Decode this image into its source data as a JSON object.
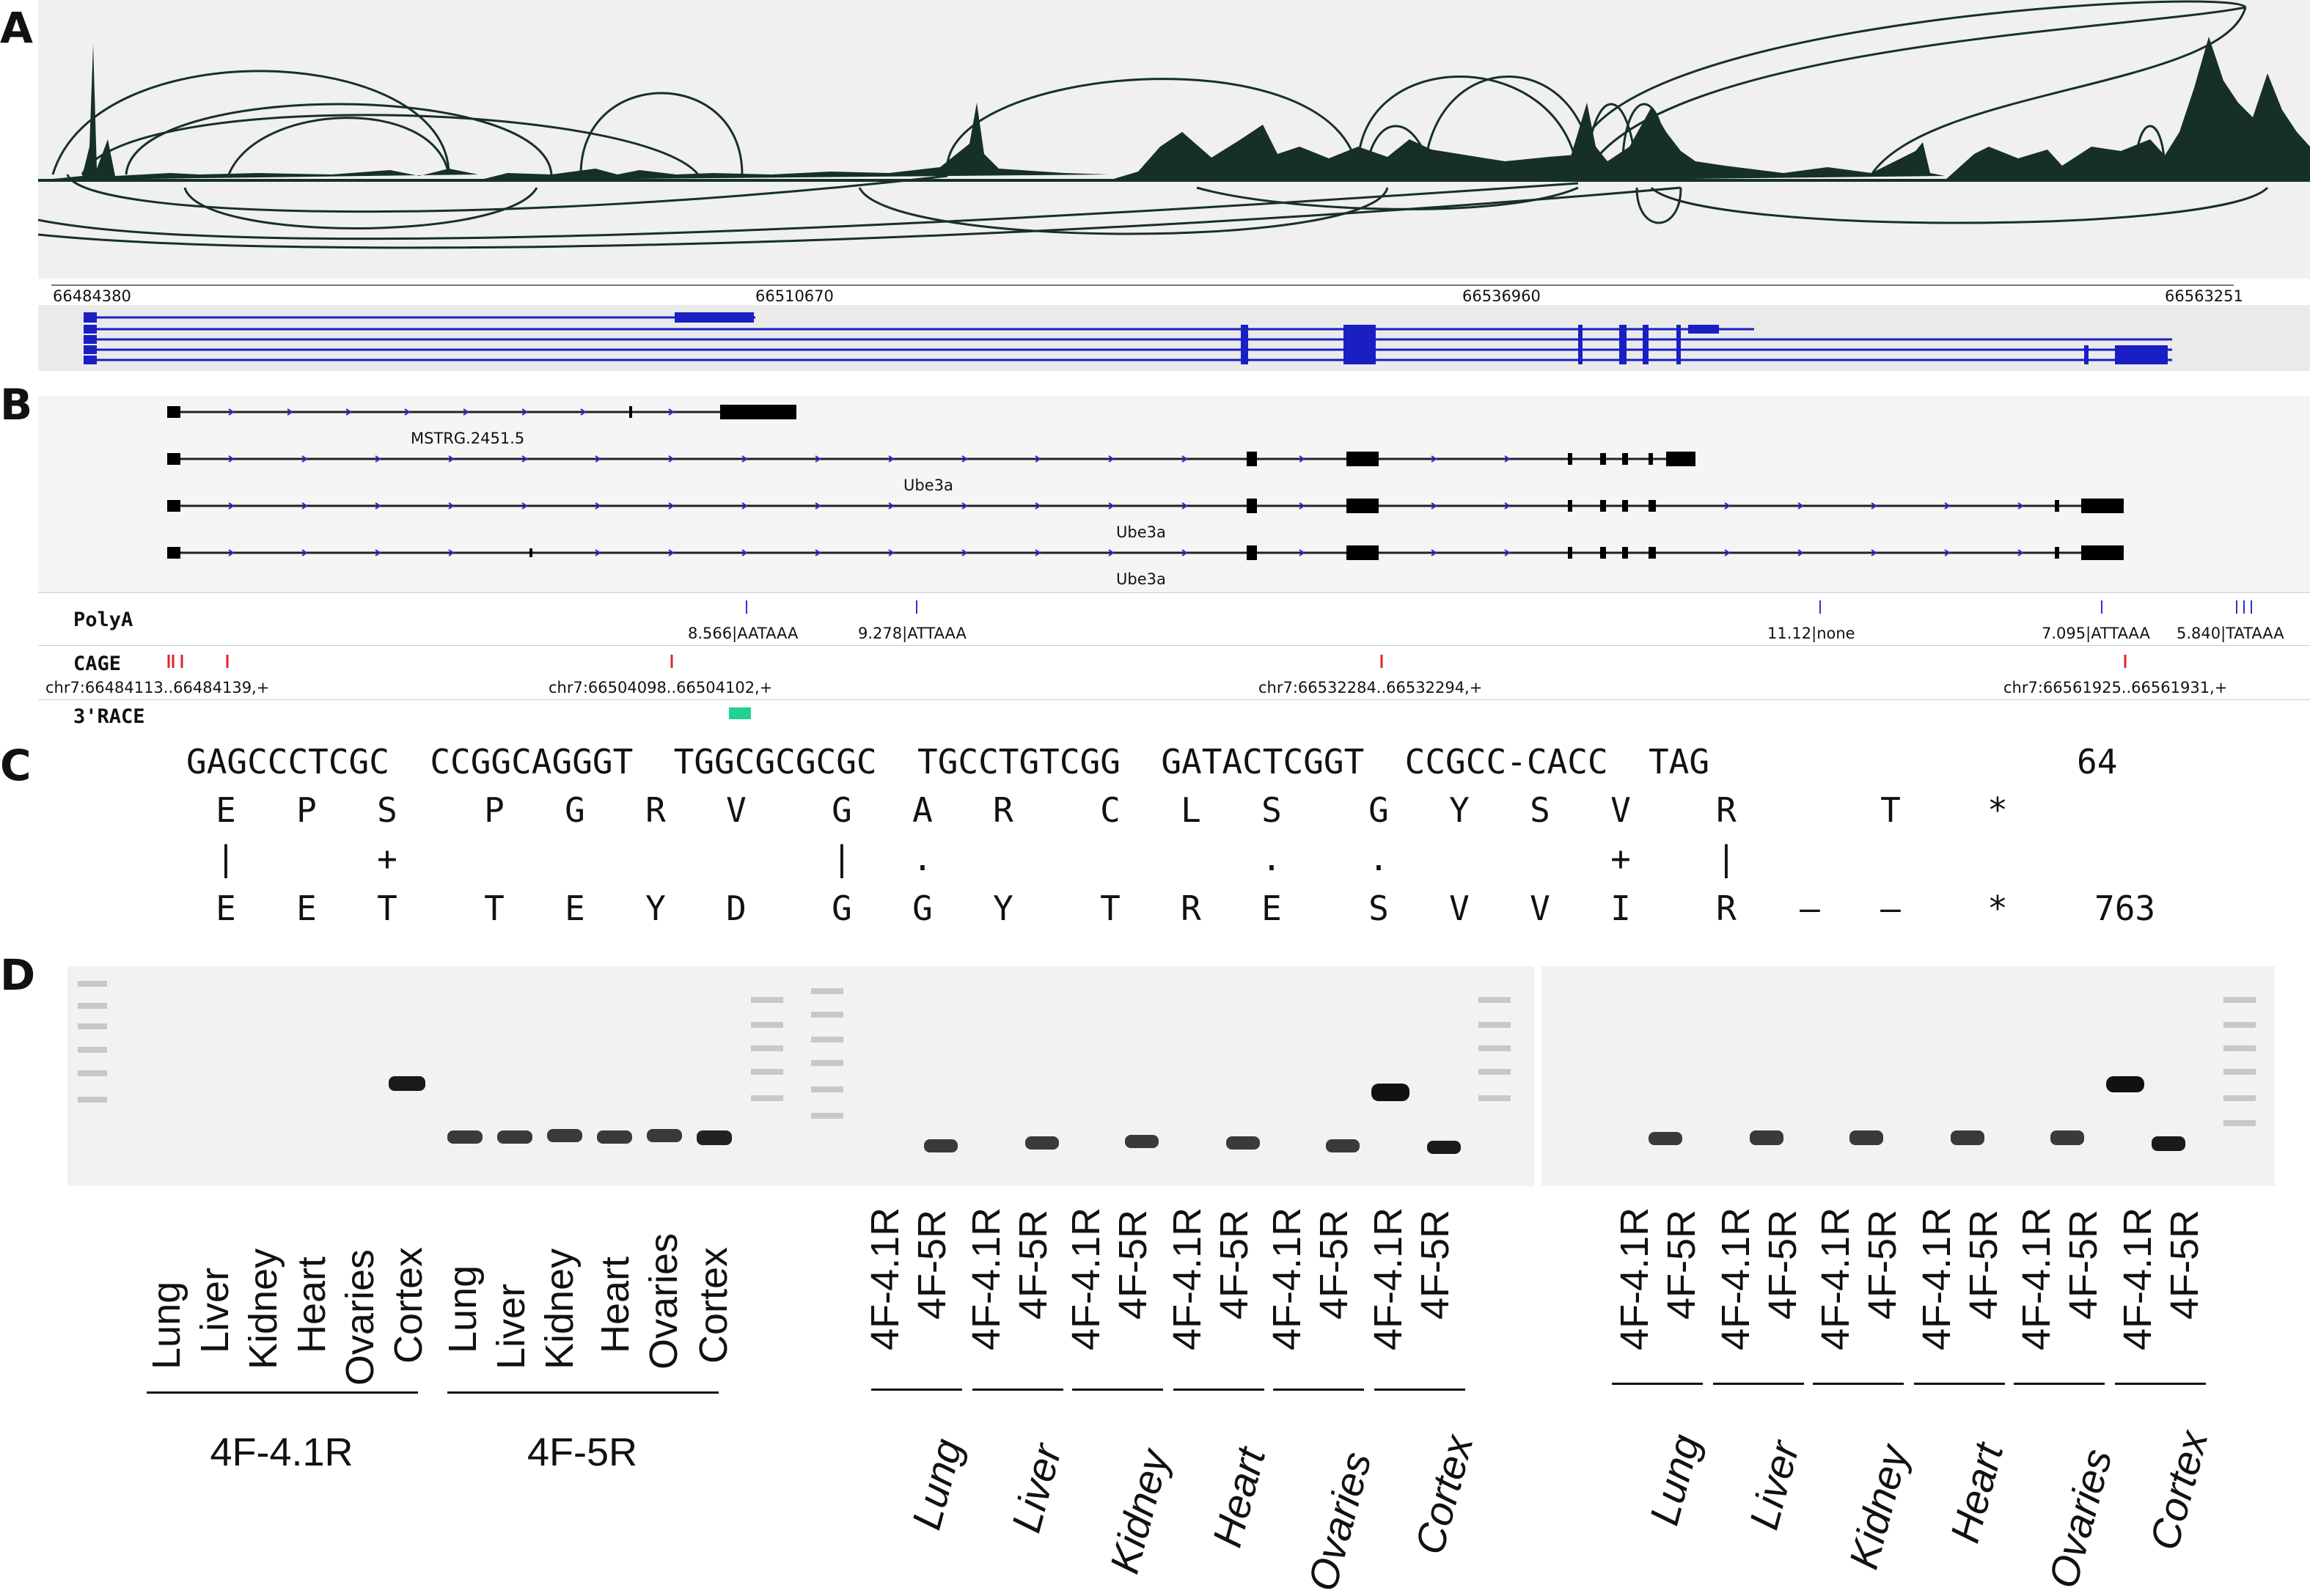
{
  "panels": {
    "a": "A",
    "b": "B",
    "c": "C",
    "d": "D"
  },
  "panelA": {
    "coords": [
      "66484380",
      "66510670",
      "66536960",
      "66563251"
    ]
  },
  "panelB": {
    "transcripts": [
      "MSTRG.2451.5",
      "Ube3a",
      "Ube3a",
      "Ube3a"
    ],
    "tracks": {
      "polya": "PolyA",
      "cage": "CAGE",
      "race": "3'RACE"
    },
    "polya_labels": [
      "8.566|AATAAA",
      "9.278|ATTAAA",
      "11.12|none",
      "7.095|ATTAAA",
      "5.840|TATAAA"
    ],
    "cage_labels": [
      "chr7:66484113..66484139,+",
      "chr7:66504098..66504102,+",
      "chr7:66532284..66532294,+",
      "chr7:66561925..66561931,+"
    ]
  },
  "panelC": {
    "dna": "GAGCCCTCGC  CCGGCAGGGT  TGGCGCGCGC  TGCCTGTCGG  GATACTCGGT  CCGCC-CACC  TAG",
    "dna_end": "64",
    "top_aa": [
      "E",
      "P",
      "S",
      "P",
      "G",
      "R",
      "V",
      "G",
      "A",
      "R",
      "C",
      "L",
      "S",
      "G",
      "Y",
      "S",
      "V",
      "R",
      "T",
      "*"
    ],
    "match": [
      "|",
      "+",
      "|",
      ".",
      ".",
      ".",
      "+",
      "|"
    ],
    "bottom_aa": [
      "E",
      "E",
      "T",
      "T",
      "E",
      "Y",
      "D",
      "G",
      "G",
      "Y",
      "T",
      "R",
      "E",
      "S",
      "V",
      "V",
      "I",
      "R",
      "–",
      "–",
      "*"
    ],
    "bottom_end": "763"
  },
  "panelD": {
    "gel1_lanes": [
      "Lung",
      "Liver",
      "Kidney",
      "Heart",
      "Ovaries",
      "Cortex",
      "Lung",
      "Liver",
      "Kidney",
      "Heart",
      "Ovaries",
      "Cortex"
    ],
    "gel1_groups": [
      "4F-4.1R",
      "4F-5R"
    ],
    "primer_lanes": [
      "4F-4.1R",
      "4F-5R",
      "4F-4.1R",
      "4F-5R",
      "4F-4.1R",
      "4F-5R",
      "4F-4.1R",
      "4F-5R",
      "4F-4.1R",
      "4F-5R",
      "4F-4.1R",
      "4F-5R"
    ],
    "tissues": [
      "Lung",
      "Liver",
      "Kidney",
      "Heart",
      "Ovaries",
      "Cortex"
    ]
  },
  "colors": {
    "coverage": "#163028",
    "gene": "#1a1fc4",
    "cage": "#e0242b",
    "race": "#21d18f",
    "track_bg": "#f3f3f3"
  }
}
